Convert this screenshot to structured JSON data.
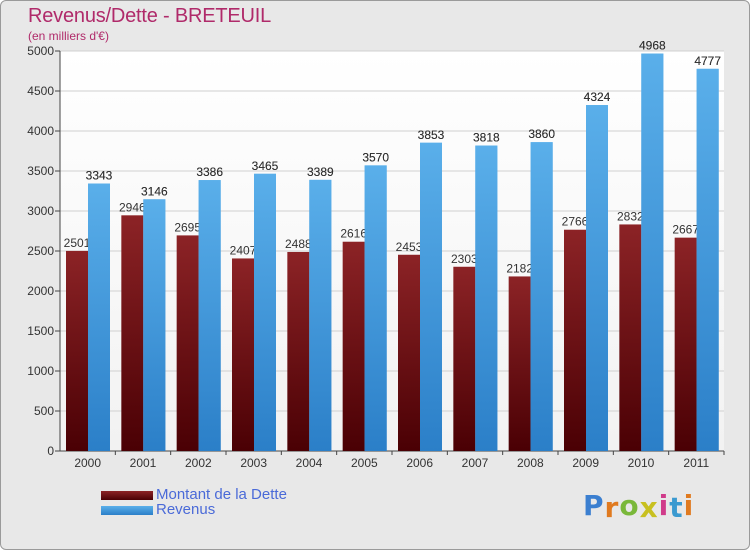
{
  "chart_data": {
    "type": "bar",
    "title": "Revenus/Dette - BRETEUIL",
    "subtitle": "(en milliers d'€)",
    "categories": [
      "2000",
      "2001",
      "2002",
      "2003",
      "2004",
      "2005",
      "2006",
      "2007",
      "2008",
      "2009",
      "2010",
      "2011"
    ],
    "series": [
      {
        "name": "Montant de la Dette",
        "color": "#7a1416",
        "values": [
          2501,
          2946,
          2695,
          2407,
          2488,
          2616,
          2453,
          2303,
          2182,
          2766,
          2832,
          2667
        ],
        "labels": [
          "2501",
          "2946",
          "2695",
          "2407",
          "2488",
          "2616",
          "2453",
          "2303",
          "2182",
          "2766",
          "2832",
          "2667"
        ]
      },
      {
        "name": "Revenus",
        "color": "#4aa3e8",
        "values": [
          3343,
          3146,
          3386,
          3465,
          3389,
          3570,
          3853,
          3818,
          3860,
          4324,
          4968,
          4777
        ],
        "labels": [
          "3343",
          "3146",
          "3386",
          "3465",
          "3389",
          "3570",
          "3853",
          "3818",
          "3860",
          "4324",
          "4968",
          "4777"
        ]
      }
    ],
    "yticks": [
      "0",
      "500",
      "1000",
      "1500",
      "2000",
      "2500",
      "3000",
      "3500",
      "4000",
      "4500",
      "5000"
    ],
    "ylim": [
      0,
      5000
    ],
    "grid": true,
    "legend_position": "bottom-left"
  },
  "legend": {
    "debt_label": "Montant de la Dette",
    "revenue_label": "Revenus"
  },
  "logo": {
    "letters": [
      "P",
      "r",
      "o",
      "x",
      "i",
      "t",
      "i"
    ],
    "colors": [
      "#3b7fd0",
      "#e07a1f",
      "#7ab83a",
      "#c8c020",
      "#d03b8a",
      "#3b9ad0",
      "#e07a1f"
    ]
  }
}
